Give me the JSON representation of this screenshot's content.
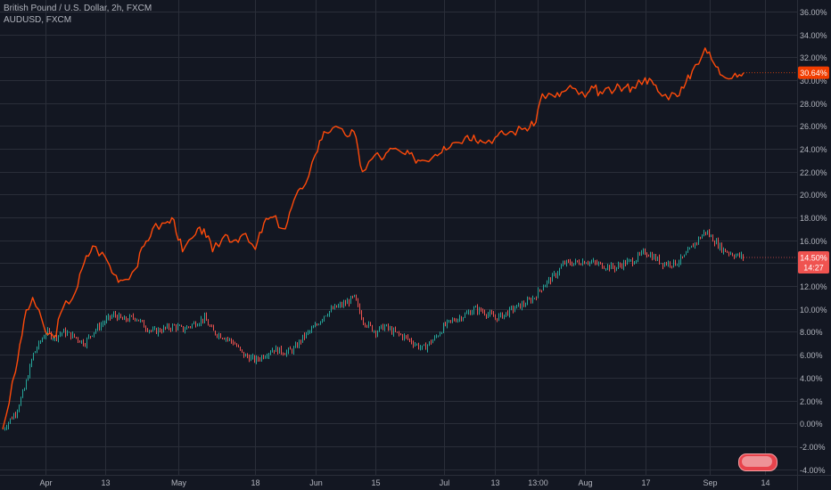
{
  "header": {
    "main_symbol": "British Pound / U.S. Dollar, 2h, FXCM",
    "compare_symbol": "AUDUSD, FXCM"
  },
  "colors": {
    "background": "#131722",
    "grid": "#2a2e39",
    "text": "#b2b5be",
    "gbpusd_line": "#ff4a0a",
    "gbpusd_badge": "#f23d00",
    "audusd_up": "#26a69a",
    "audusd_down": "#ef5350",
    "audusd_badge": "#ef5350"
  },
  "chart_data": {
    "type": "line",
    "y_unit": "percent",
    "ylim": [
      -4.5,
      37
    ],
    "y_ticks": [
      "36.00%",
      "34.00%",
      "32.00%",
      "30.00%",
      "28.00%",
      "26.00%",
      "24.00%",
      "22.00%",
      "20.00%",
      "18.00%",
      "16.00%",
      "14.00%",
      "12.00%",
      "10.00%",
      "8.00%",
      "6.00%",
      "4.00%",
      "2.00%",
      "0.00%",
      "-2.00%",
      "-4.00%"
    ],
    "x_ticks": [
      "Apr",
      "13",
      "May",
      "18",
      "Jun",
      "15",
      "Jul",
      "13",
      "13:00",
      "Aug",
      "17",
      "Sep",
      "14"
    ],
    "grid": true,
    "series": [
      {
        "name": "GBPUSD",
        "style": "line",
        "last_label": "30.64%",
        "x": [
          "Mar 20",
          "Mar 23",
          "Mar 25",
          "Mar 27",
          "Mar 30",
          "Apr 1",
          "Apr 3",
          "Apr 6",
          "Apr 8",
          "Apr 10",
          "Apr 13",
          "Apr 15",
          "Apr 17",
          "Apr 20",
          "Apr 22",
          "Apr 24",
          "Apr 27",
          "Apr 29",
          "May 1",
          "May 4",
          "May 6",
          "May 8",
          "May 11",
          "May 13",
          "May 15",
          "May 18",
          "May 20",
          "May 22",
          "May 25",
          "May 27",
          "May 29",
          "Jun 1",
          "Jun 3",
          "Jun 5",
          "Jun 8",
          "Jun 10",
          "Jun 12",
          "Jun 15",
          "Jun 17",
          "Jun 19",
          "Jun 22",
          "Jun 24",
          "Jun 26",
          "Jun 29",
          "Jul 1",
          "Jul 3",
          "Jul 6",
          "Jul 8",
          "Jul 10",
          "Jul 13",
          "Jul 15",
          "Jul 17",
          "Jul 20",
          "Jul 22",
          "Jul 24",
          "Jul 27",
          "Jul 29",
          "Jul 31",
          "Aug 3",
          "Aug 5",
          "Aug 7",
          "Aug 10",
          "Aug 12",
          "Aug 14",
          "Aug 17",
          "Aug 19",
          "Aug 21",
          "Aug 24",
          "Aug 26",
          "Aug 28",
          "Aug 31",
          "Sep 2",
          "Sep 4",
          "Sep 7",
          "Sep 9"
        ],
        "values": [
          -0.5,
          4.5,
          9,
          11,
          8,
          7.5,
          10,
          11.5,
          14,
          15.5,
          14.5,
          13,
          12.5,
          13.5,
          15.5,
          17,
          17.5,
          17.8,
          15,
          16.5,
          17,
          15,
          16.5,
          16,
          16.5,
          15.2,
          17.5,
          18,
          17,
          19.5,
          20.5,
          23.5,
          25.5,
          25.8,
          25.2,
          25.5,
          22,
          23.5,
          23.2,
          24,
          23.5,
          23.2,
          23,
          23.5,
          24.2,
          24.5,
          25,
          25.2,
          24.6,
          25,
          25.3,
          25.5,
          25.8,
          26,
          28.8,
          28.5,
          29,
          29.3,
          28.5,
          29.3,
          28.8,
          29.2,
          29.3,
          29.4,
          30.2,
          29.6,
          28.6,
          28.8,
          29.3,
          30.8,
          32.8,
          31.5,
          30.4,
          30.6,
          30.64
        ]
      },
      {
        "name": "AUDUSD",
        "style": "candles",
        "last_label": "14.50%",
        "countdown": "14:27",
        "x": [
          "Mar 20",
          "Mar 23",
          "Mar 25",
          "Mar 27",
          "Mar 30",
          "Apr 1",
          "Apr 3",
          "Apr 6",
          "Apr 8",
          "Apr 10",
          "Apr 13",
          "Apr 15",
          "Apr 17",
          "Apr 20",
          "Apr 22",
          "Apr 24",
          "Apr 27",
          "Apr 29",
          "May 1",
          "May 4",
          "May 6",
          "May 8",
          "May 11",
          "May 13",
          "May 15",
          "May 18",
          "May 20",
          "May 22",
          "May 25",
          "May 27",
          "May 29",
          "Jun 1",
          "Jun 3",
          "Jun 5",
          "Jun 8",
          "Jun 10",
          "Jun 12",
          "Jun 15",
          "Jun 17",
          "Jun 19",
          "Jun 22",
          "Jun 24",
          "Jun 26",
          "Jun 29",
          "Jul 1",
          "Jul 3",
          "Jul 6",
          "Jul 8",
          "Jul 10",
          "Jul 13",
          "Jul 15",
          "Jul 17",
          "Jul 20",
          "Jul 22",
          "Jul 24",
          "Jul 27",
          "Jul 29",
          "Jul 31",
          "Aug 3",
          "Aug 5",
          "Aug 7",
          "Aug 10",
          "Aug 12",
          "Aug 14",
          "Aug 17",
          "Aug 19",
          "Aug 21",
          "Aug 24",
          "Aug 26",
          "Aug 28",
          "Aug 31",
          "Sep 2",
          "Sep 4",
          "Sep 7",
          "Sep 9"
        ],
        "values": [
          -0.5,
          1,
          3,
          6,
          8,
          7.5,
          8,
          7.5,
          7,
          8,
          9,
          9.5,
          9,
          9.3,
          8.5,
          8,
          8.3,
          8.5,
          8.2,
          8.8,
          9.2,
          8,
          7.5,
          7,
          6,
          5.5,
          6,
          6.5,
          6.2,
          6.5,
          7.5,
          8.5,
          9.5,
          10,
          10.5,
          11,
          9,
          8,
          8.5,
          8,
          7.5,
          7,
          6.5,
          7.5,
          8.5,
          9,
          9.5,
          10,
          9.8,
          9.2,
          9.5,
          10,
          10.5,
          11,
          12,
          13,
          14,
          14,
          14.2,
          14,
          13.8,
          13.6,
          14,
          14.2,
          15,
          14.5,
          14,
          14,
          14.5,
          15.5,
          16.8,
          16,
          15.2,
          14.7,
          14.5
        ]
      }
    ]
  }
}
